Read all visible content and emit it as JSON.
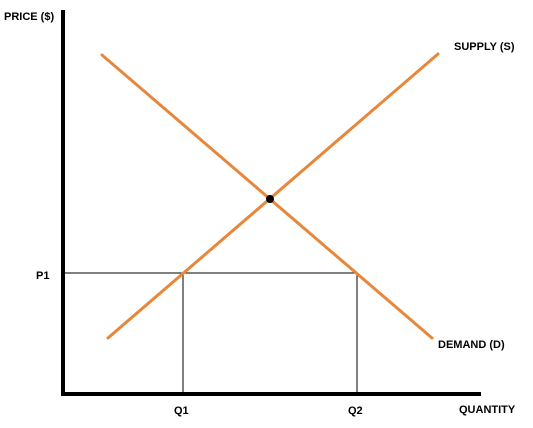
{
  "colors": {
    "curve": "#E8873A",
    "axis": "#000000",
    "guide": "#000000",
    "point": "#000000",
    "background": "#FFFFFF"
  },
  "axes": {
    "y_label": "PRICE ($)",
    "x_label": "QUANTITY"
  },
  "curves": {
    "supply_label": "SUPPLY (S)",
    "demand_label": "DEMAND (D)"
  },
  "markers": {
    "price_label": "P1",
    "q1_label": "Q1",
    "q2_label": "Q2"
  }
}
